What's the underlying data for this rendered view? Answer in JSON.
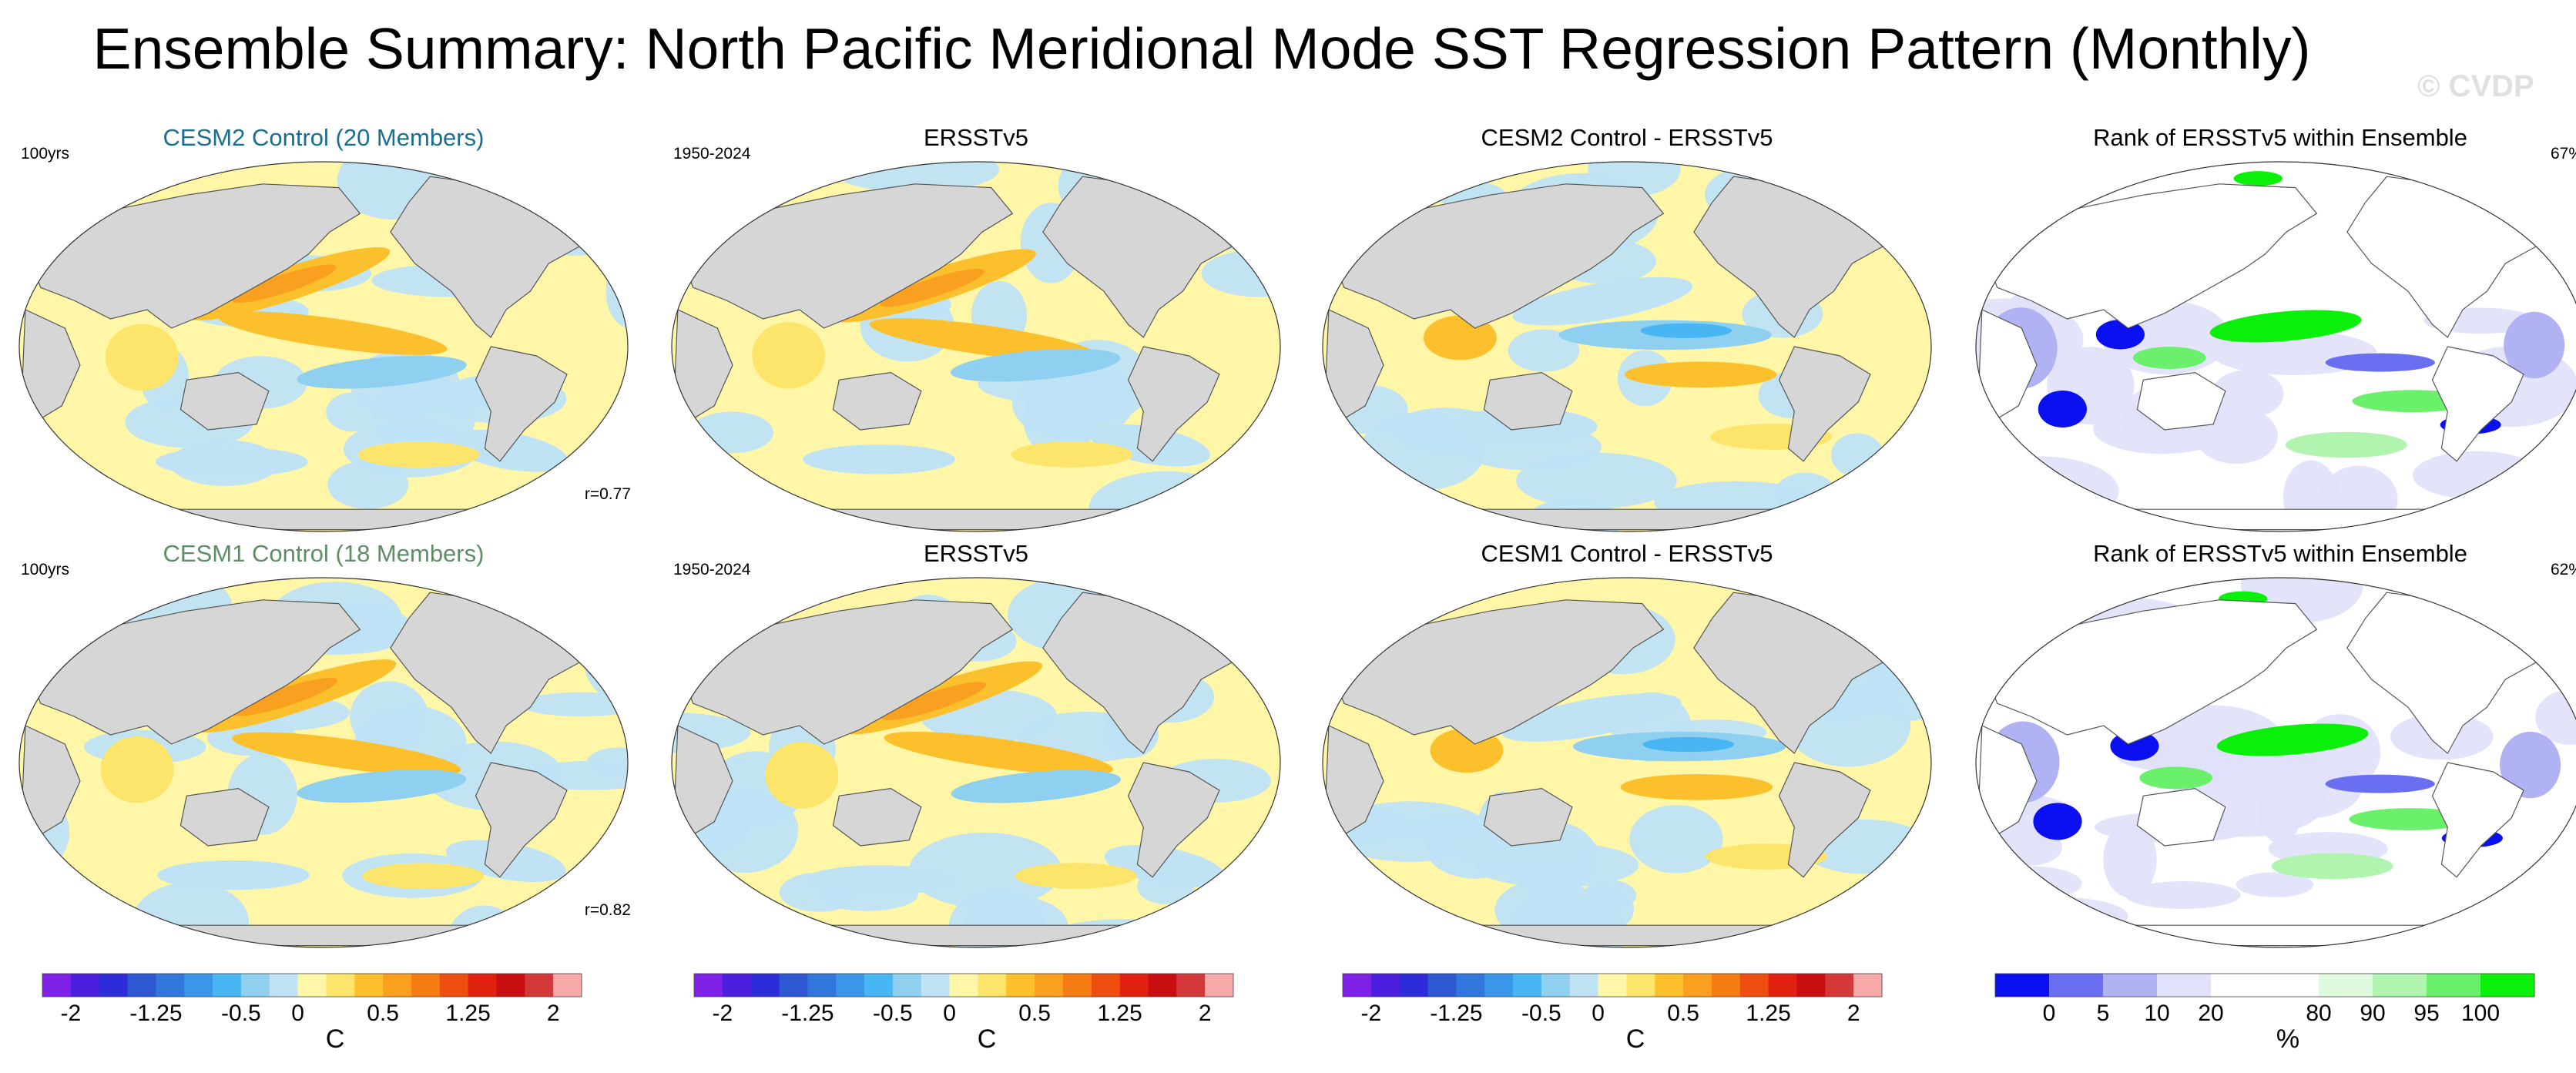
{
  "title": "Ensemble Summary: North Pacific Meridional Mode SST Regression Pattern (Monthly)",
  "watermark": "© CVDP",
  "colors": {
    "land": "#d6d6d6",
    "ocean_neutral": "#ffffff",
    "ensemble_row1_title": "#1a6e8e",
    "ensemble_row2_title": "#5f8d66"
  },
  "rows": [
    {
      "panels": [
        {
          "title": "CESM2 Control (20 Members)",
          "left": "100yrs",
          "right": "",
          "corr": "r=0.77",
          "kind": "sst"
        },
        {
          "title": "ERSSTv5",
          "left": "1950-2024",
          "right": "",
          "corr": "",
          "kind": "sst"
        },
        {
          "title": "CESM2 Control - ERSSTv5",
          "left": "",
          "right": "",
          "corr": "",
          "kind": "diff"
        },
        {
          "title": "Rank of ERSSTv5 within Ensemble",
          "left": "",
          "right": "67%",
          "corr": "",
          "kind": "rank"
        }
      ]
    },
    {
      "panels": [
        {
          "title": "CESM1 Control (18 Members)",
          "left": "100yrs",
          "right": "",
          "corr": "r=0.82",
          "kind": "sst"
        },
        {
          "title": "ERSSTv5",
          "left": "1950-2024",
          "right": "",
          "corr": "",
          "kind": "sst"
        },
        {
          "title": "CESM1 Control - ERSSTv5",
          "left": "",
          "right": "",
          "corr": "",
          "kind": "diff"
        },
        {
          "title": "Rank of ERSSTv5 within Ensemble",
          "left": "",
          "right": "62%",
          "corr": "",
          "kind": "rank"
        }
      ]
    }
  ],
  "colorbars": {
    "temperature": {
      "units": "C",
      "colors": [
        "#7f21e6",
        "#4b1ee0",
        "#2c2cd8",
        "#2e57d2",
        "#3076dc",
        "#3b95e8",
        "#48b6f2",
        "#8fcff0",
        "#bfe3f5",
        "#fff6a8",
        "#fde46a",
        "#fbc02c",
        "#f9a020",
        "#f57d14",
        "#ee4f10",
        "#e22010",
        "#c80e10",
        "#d43838",
        "#f7a8a8"
      ],
      "tick_labels": [
        "-2",
        "-1.25",
        "-0.5",
        "0",
        "0.5",
        "1.25",
        "2"
      ],
      "tick_after_box": [
        1,
        4,
        7,
        9,
        12,
        15,
        18
      ]
    },
    "rank": {
      "units": "%",
      "colors": [
        "#0a10f0",
        "#6a6ef0",
        "#b0b2f4",
        "#e0e1fa",
        "#ffffff",
        "#ffffff",
        "#e0fae0",
        "#b0f4b0",
        "#6af06a",
        "#0af00a"
      ],
      "tick_labels": [
        "0",
        "5",
        "10",
        "20",
        "80",
        "90",
        "95",
        "100"
      ],
      "tick_after_box": [
        1,
        2,
        3,
        4,
        6,
        7,
        8,
        9
      ]
    }
  }
}
